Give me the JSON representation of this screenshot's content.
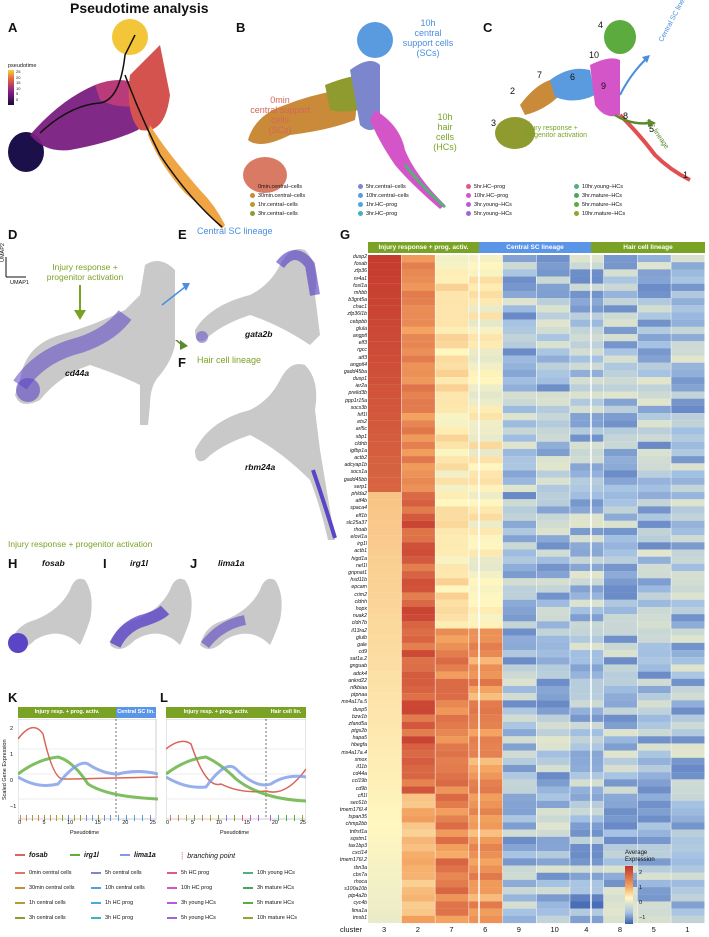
{
  "figure": {
    "title": "Pseudotime analysis",
    "panel_letters": [
      "A",
      "B",
      "C",
      "D",
      "E",
      "F",
      "G",
      "H",
      "I",
      "J",
      "K",
      "L"
    ],
    "panel_a": {
      "scale_title": "pseudotime",
      "scale_ticks": [
        "25",
        "20",
        "15",
        "10",
        "5",
        "0"
      ],
      "axis_x": "UMAP1",
      "axis_y": "UMAP2"
    },
    "panel_b": {
      "label_0min": "0min\ncentral support\ncells\n(SCs)",
      "label_10h_scs": "10h\ncentral\nsupport cells\n(SCs)",
      "label_10h_hcs": "10h\nhair\ncells\n(HCs)",
      "legend": [
        {
          "label": "0min.central–cells",
          "color": "#d97a64"
        },
        {
          "label": "30min.central–cells",
          "color": "#c98a3a"
        },
        {
          "label": "1hr.central–cells",
          "color": "#b89b2c"
        },
        {
          "label": "3hr.central–cells",
          "color": "#8f9a2f"
        },
        {
          "label": "5hr.central–cells",
          "color": "#7b86cc"
        },
        {
          "label": "10hr.central–cells",
          "color": "#5a9be0"
        },
        {
          "label": "1hr.HC–prog",
          "color": "#4aa9dc"
        },
        {
          "label": "3hr.HC–prog",
          "color": "#43b0c0"
        },
        {
          "label": "5hr.HC–prog",
          "color": "#e0588a"
        },
        {
          "label": "10hr.HC–prog",
          "color": "#d455c8"
        },
        {
          "label": "3hr.young–HCs",
          "color": "#b55ad9"
        },
        {
          "label": "5hr.young–HCs",
          "color": "#9b68da"
        },
        {
          "label": "10hr.young–HCs",
          "color": "#55b07a"
        },
        {
          "label": "3hr.mature–HCs",
          "color": "#4aa65a"
        },
        {
          "label": "5hr.mature–HCs",
          "color": "#5bab3e"
        },
        {
          "label": "10hr.mature–HCs",
          "color": "#8fa82c"
        }
      ]
    },
    "panel_c": {
      "clusters": [
        "4",
        "10",
        "7",
        "6",
        "9",
        "2",
        "3",
        "8",
        "5",
        "1"
      ],
      "central_sc_lineage": "Central SC lineage",
      "hc_lineage": "HC lineage",
      "injury_label": "Injury response +\nprogenitor activation"
    },
    "panel_d": {
      "label": "Injury response +\nprogenitor activation",
      "gene": "cd44a"
    },
    "panel_e": {
      "label": "Central SC lineage",
      "gene": "gata2b"
    },
    "panel_f": {
      "label": "Hair cell lineage",
      "gene": "rbm24a"
    },
    "section_hij": "Injury response + progenitor activation",
    "panel_h": {
      "gene": "fosab"
    },
    "panel_i": {
      "gene": "irg1l"
    },
    "panel_j": {
      "gene": "lima1a"
    },
    "panel_k": {
      "header_left": "Injury resp. + prog. activ.",
      "header_right": "Central SC lin.",
      "ylabel": "Scaled Gene Expression",
      "xlabel": "Pseudotime",
      "yticks": [
        "2",
        "1",
        "0",
        "−1"
      ],
      "xticks": [
        "0",
        "5",
        "10",
        "15",
        "20",
        "25"
      ]
    },
    "panel_l": {
      "header_left": "Injury resp. + prog. activ.",
      "header_right": "Hair cell lin.",
      "xlabel": "Pseudotime",
      "xticks": [
        "0",
        "5",
        "10",
        "15",
        "20",
        "25"
      ]
    },
    "kl_legend": {
      "genes": [
        {
          "label": "fosab",
          "color": "#d9645a"
        },
        {
          "label": "irg1l",
          "color": "#5fae3a"
        },
        {
          "label": "lima1a",
          "color": "#7d9be6"
        }
      ],
      "branch_label": "branching point",
      "conditions": [
        {
          "label": "0min central cells",
          "color": "#d97a64"
        },
        {
          "label": "30min central cells",
          "color": "#c98a3a"
        },
        {
          "label": "1h central cells",
          "color": "#b89b2c"
        },
        {
          "label": "3h central cells",
          "color": "#8f9a2f"
        },
        {
          "label": "5h central cells",
          "color": "#7b86cc"
        },
        {
          "label": "10h central cells",
          "color": "#5a9be0"
        },
        {
          "label": "1h HC prog",
          "color": "#4aa9dc"
        },
        {
          "label": "3h HC prog",
          "color": "#43b0c0"
        },
        {
          "label": "5h HC prog",
          "color": "#e0588a"
        },
        {
          "label": "10h HC prog",
          "color": "#d455c8"
        },
        {
          "label": "3h young HCs",
          "color": "#b55ad9"
        },
        {
          "label": "5h young HCs",
          "color": "#9b68da"
        },
        {
          "label": "10h young HCs",
          "color": "#55b07a"
        },
        {
          "label": "3h mature HCs",
          "color": "#4aa65a"
        },
        {
          "label": "5h mature HCs",
          "color": "#5bab3e"
        },
        {
          "label": "10h mature HCs",
          "color": "#8fa82c"
        }
      ]
    },
    "panel_g": {
      "headers": [
        "Injury response + prog. activ.",
        "Central SC lineage",
        "Hair cell lineage"
      ],
      "header_colors": [
        "#7aa325",
        "#5b95e8",
        "#7aa325"
      ],
      "cluster_label": "cluster",
      "clusters": [
        "3",
        "2",
        "7",
        "6",
        "9",
        "10",
        "4",
        "8",
        "5",
        "1"
      ],
      "genes": [
        "dusp2",
        "fosab",
        "zfp36",
        "nr4a1",
        "fosl1a",
        "mhbb",
        "b3gnt5a",
        "chac1",
        "zfp36l1b",
        "cebpbb",
        "glula",
        "angptl",
        "elf3",
        "rgcc",
        "atf3",
        "angptl4",
        "gadd45ba",
        "dusp1",
        "ier2a",
        "prelid3b",
        "ppp1r15a",
        "socs3b",
        "hif1l",
        "ets2",
        "arl5c",
        "xbp1",
        "cldnb",
        "igfbp1a",
        "actb2",
        "adcyap1b",
        "socs1a",
        "gadd45bb",
        "serp1",
        "phlda2",
        "atf4b",
        "spaca4",
        "elf1b",
        "slc25a37",
        "rhoab",
        "elovl1a",
        "irg1l",
        "actb1",
        "higd1a",
        "nel1l",
        "gnpnat1",
        "hsd11b",
        "epcam",
        "crim2",
        "cldnh",
        "hopx",
        "nuak2",
        "cldn7b",
        "il13ra2",
        "glulb",
        "gale",
        "cd9",
        "sat1a.2",
        "gnguab",
        "adck4",
        "ankrd22",
        "nfkbiaa",
        "ptpnaa",
        "ms4a17a.5",
        "dusp5",
        "bzw1b",
        "zfand5a",
        "ptgs2b",
        "hapa5",
        "hbegfa",
        "ms4a17a.4",
        "smox",
        "il11b",
        "cd44a",
        "ccl19b",
        "cd9b",
        "cfl1l",
        "sec61b",
        "tmem176l.4",
        "tspan35",
        "chmp2bb",
        "tnfrsf1a",
        "sqstm1",
        "tax1bp3",
        "cxcl14",
        "tmem176l.2",
        "rbn3a",
        "cbx7a",
        "rhoca",
        "s100a10b",
        "ptp4a2b",
        "cyc4b",
        "lima1a",
        "tmsb1"
      ],
      "scale_title": "Average\nExpression",
      "scale_ticks": [
        "2",
        "1",
        "0",
        "−1"
      ]
    }
  }
}
